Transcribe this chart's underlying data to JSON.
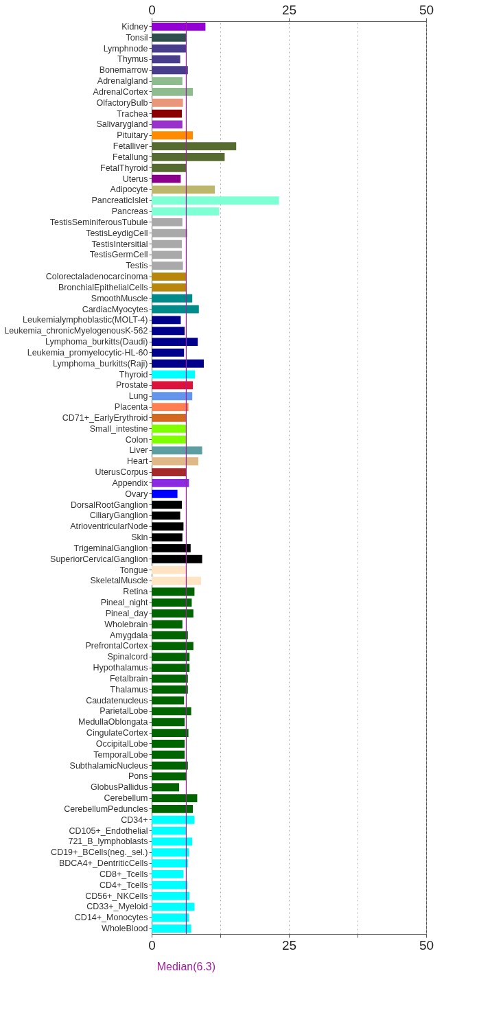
{
  "chart_data": {
    "type": "bar",
    "orientation": "horizontal",
    "categories": [
      "Kidney",
      "Tonsil",
      "Lymphnode",
      "Thymus",
      "Bonemarrow",
      "Adrenalgland",
      "AdrenalCortex",
      "OlfactoryBulb",
      "Trachea",
      "Salivarygland",
      "Pituitary",
      "Fetalliver",
      "Fetallung",
      "FetalThyroid",
      "Uterus",
      "Adipocyte",
      "PancreaticIslet",
      "Pancreas",
      "TestisSeminiferousTubule",
      "TestisLeydigCell",
      "TestisIntersitial",
      "TestisGermCell",
      "Testis",
      "Colorectaladenocarcinoma",
      "BronchialEpithelialCells",
      "SmoothMuscle",
      "CardiacMyocytes",
      "Leukemialymphoblastic(MOLT-4)",
      "Leukemia_chronicMyelogenousK-562",
      "Lymphoma_burkitts(Daudi)",
      "Leukemia_promyelocytic-HL-60",
      "Lymphoma_burkitts(Raji)",
      "Thyroid",
      "Prostate",
      "Lung",
      "Placenta",
      "CD71+_EarlyErythroid",
      "Small_intestine",
      "Colon",
      "Liver",
      "Heart",
      "UterusCorpus",
      "Appendix",
      "Ovary",
      "DorsalRootGanglion",
      "CiliaryGanglion",
      "AtrioventricularNode",
      "Skin",
      "TrigeminalGanglion",
      "SuperiorCervicalGanglion",
      "Tongue",
      "SkeletalMuscle",
      "Retina",
      "Pineal_night",
      "Pineal_day",
      "Wholebrain",
      "Amygdala",
      "PrefrontalCortex",
      "Spinalcord",
      "Hypothalamus",
      "Fetalbrain",
      "Thalamus",
      "Caudatenucleus",
      "ParietalLobe",
      "MedullaOblongata",
      "CingulateCortex",
      "OccipitalLobe",
      "TemporalLobe",
      "SubthalamicNucleus",
      "Pons",
      "GlobusPallidus",
      "Cerebellum",
      "CerebellumPeduncles",
      "CD34+",
      "CD105+_Endothelial",
      "721_B_lymphoblasts",
      "CD19+_BCells(neg._sel.)",
      "BDCA4+_DentriticCells",
      "CD8+_Tcells",
      "CD4+_Tcells",
      "CD56+_NKCells",
      "CD33+_Myeloid",
      "CD14+_Monocytes",
      "WholeBlood"
    ],
    "values": [
      9.8,
      6.4,
      6.3,
      5.2,
      6.6,
      5.6,
      7.5,
      5.7,
      5.5,
      5.6,
      7.5,
      15.4,
      13.3,
      6.3,
      5.3,
      11.5,
      23.2,
      12.3,
      5.6,
      6.5,
      5.5,
      5.5,
      5.7,
      6.3,
      6.4,
      7.4,
      8.6,
      5.3,
      6.0,
      8.4,
      5.9,
      9.5,
      7.9,
      7.5,
      7.4,
      6.7,
      6.3,
      6.4,
      6.4,
      9.2,
      8.5,
      6.3,
      6.8,
      4.7,
      5.5,
      5.2,
      5.8,
      5.6,
      7.1,
      9.2,
      6.3,
      9.0,
      7.8,
      7.3,
      7.6,
      5.6,
      6.6,
      7.6,
      6.9,
      6.9,
      6.6,
      6.6,
      5.9,
      7.2,
      6.0,
      6.7,
      6.0,
      6.0,
      6.6,
      6.4,
      5.0,
      8.3,
      7.5,
      7.8,
      6.3,
      7.4,
      6.8,
      6.6,
      5.8,
      6.5,
      6.9,
      7.8,
      6.8,
      7.2
    ],
    "colors": [
      "#9400d3",
      "#2f4f4f",
      "#483d8b",
      "#483d8b",
      "#483d8b",
      "#8fbc8f",
      "#8fbc8f",
      "#e9967a",
      "#8b0000",
      "#9932cc",
      "#ff8c00",
      "#556b2f",
      "#556b2f",
      "#556b2f",
      "#8b008b",
      "#bdb76b",
      "#7fffd4",
      "#7fffd4",
      "#a9a9a9",
      "#a9a9a9",
      "#a9a9a9",
      "#a9a9a9",
      "#a9a9a9",
      "#b8860b",
      "#b8860b",
      "#008b8b",
      "#008b8b",
      "#00008b",
      "#00008b",
      "#00008b",
      "#00008b",
      "#00008b",
      "#00ffff",
      "#dc143c",
      "#6495ed",
      "#ff7f50",
      "#d2691e",
      "#7fff00",
      "#7fff00",
      "#5f9ea0",
      "#deb887",
      "#a52a2a",
      "#8a2be2",
      "#0000ff",
      "#000000",
      "#000000",
      "#000000",
      "#000000",
      "#000000",
      "#000000",
      "#ffe4c4",
      "#ffe4c4",
      "#006400",
      "#006400",
      "#006400",
      "#006400",
      "#006400",
      "#006400",
      "#006400",
      "#006400",
      "#006400",
      "#006400",
      "#006400",
      "#006400",
      "#006400",
      "#006400",
      "#006400",
      "#006400",
      "#006400",
      "#006400",
      "#006400",
      "#006400",
      "#006400",
      "#00ffff",
      "#00ffff",
      "#00ffff",
      "#00ffff",
      "#00ffff",
      "#00ffff",
      "#00ffff",
      "#00ffff",
      "#00ffff",
      "#00ffff",
      "#00ffff"
    ],
    "xlim": [
      0,
      50
    ],
    "xticks": [
      0,
      {
        "value": 12.5,
        "label": null
      },
      25,
      {
        "value": 37.5,
        "label": null
      },
      50
    ],
    "x2lim": [
      0,
      50
    ],
    "x2ticks": [
      0,
      25,
      50
    ],
    "grid": "x",
    "ref_lines": [
      {
        "axis": "x",
        "value": 6.3,
        "label": "Median(6.3)",
        "color": "#a020a0"
      }
    ]
  }
}
